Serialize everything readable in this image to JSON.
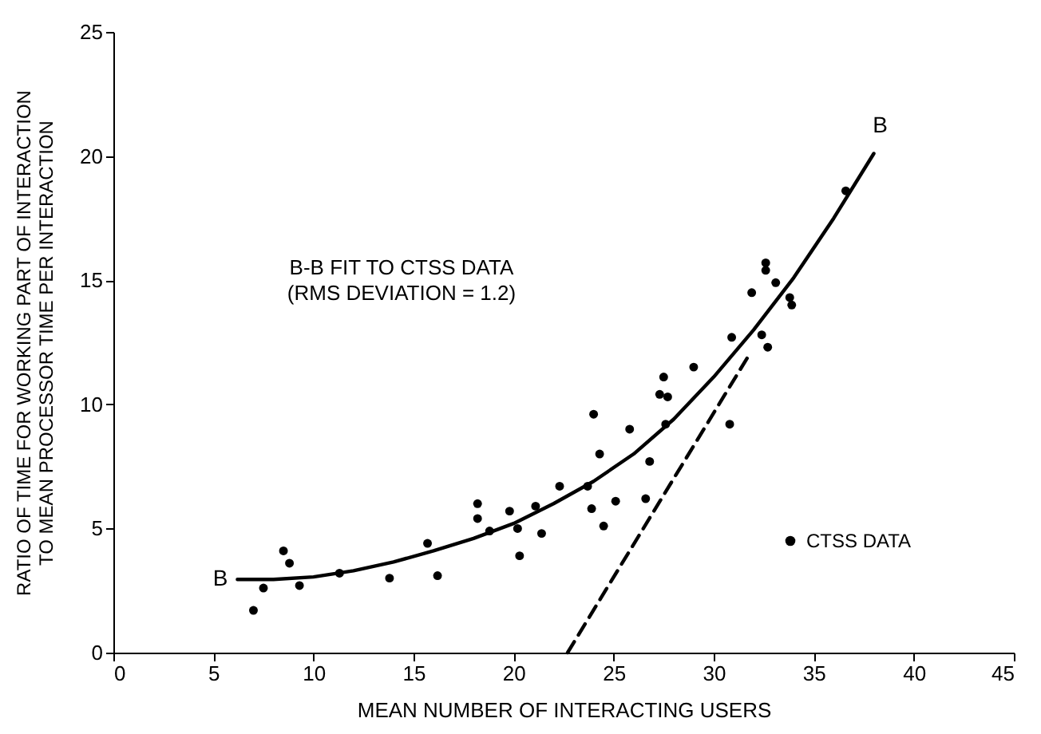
{
  "chart_data": {
    "type": "scatter",
    "xlabel": "MEAN NUMBER OF INTERACTING USERS",
    "ylabel": "RATIO OF TIME FOR WORKING PART OF INTERACTION\nTO MEAN PROCESSOR TIME PER INTERACTION",
    "xlim": [
      0,
      45
    ],
    "ylim": [
      0,
      25
    ],
    "xticks": [
      0,
      5,
      10,
      15,
      20,
      25,
      30,
      35,
      40,
      45
    ],
    "yticks": [
      0,
      5,
      10,
      15,
      20,
      25
    ],
    "grid": false,
    "legend": "bottom right",
    "annotations": [
      "B-B FIT TO CTSS DATA\n(RMS DEVIATION = 1.2)",
      {
        "text": "B",
        "x": 6.2,
        "y": 2.95
      },
      {
        "text": "B",
        "x": 38,
        "y": 20.1
      }
    ],
    "series": [
      {
        "name": "CTSS DATA",
        "color": "#000000",
        "marker": "circle",
        "x": [
          7.0,
          7.5,
          8.5,
          8.8,
          9.3,
          11.3,
          13.8,
          15.7,
          16.2,
          18.2,
          18.2,
          18.8,
          19.8,
          20.2,
          20.3,
          21.1,
          21.4,
          22.3,
          23.7,
          23.9,
          24.0,
          24.3,
          24.5,
          25.1,
          25.8,
          26.6,
          26.8,
          27.3,
          27.5,
          27.7,
          27.6,
          29.0,
          30.8,
          30.9,
          32.4,
          32.7,
          31.9,
          32.6,
          32.6,
          33.1,
          33.8,
          33.9,
          36.6
        ],
        "values": [
          1.7,
          2.6,
          4.1,
          3.6,
          2.7,
          3.2,
          3.0,
          4.4,
          3.1,
          6.0,
          5.4,
          4.9,
          5.7,
          5.0,
          3.9,
          5.9,
          4.8,
          6.7,
          6.7,
          5.8,
          9.6,
          8.0,
          5.1,
          6.1,
          9.0,
          6.2,
          7.7,
          10.4,
          11.1,
          10.3,
          9.2,
          11.5,
          9.2,
          12.7,
          12.8,
          12.3,
          14.5,
          15.7,
          15.4,
          14.9,
          14.3,
          14.0,
          18.6
        ]
      },
      {
        "type": "line",
        "marker": "none",
        "color": "#000000",
        "x": [
          6.2,
          8,
          10,
          12,
          14,
          16,
          18,
          20,
          22,
          24,
          26,
          28,
          30,
          32,
          34,
          36,
          38
        ],
        "values": [
          2.95,
          2.95,
          3.05,
          3.3,
          3.65,
          4.1,
          4.6,
          5.2,
          6.0,
          6.9,
          8.0,
          9.4,
          11.1,
          13.0,
          15.1,
          17.5,
          20.1
        ]
      },
      {
        "type": "line",
        "marker": "none",
        "line_style": "dashed",
        "color": "#000000",
        "x": [
          22.7,
          31.7
        ],
        "values": [
          0,
          11.9
        ]
      }
    ]
  }
}
